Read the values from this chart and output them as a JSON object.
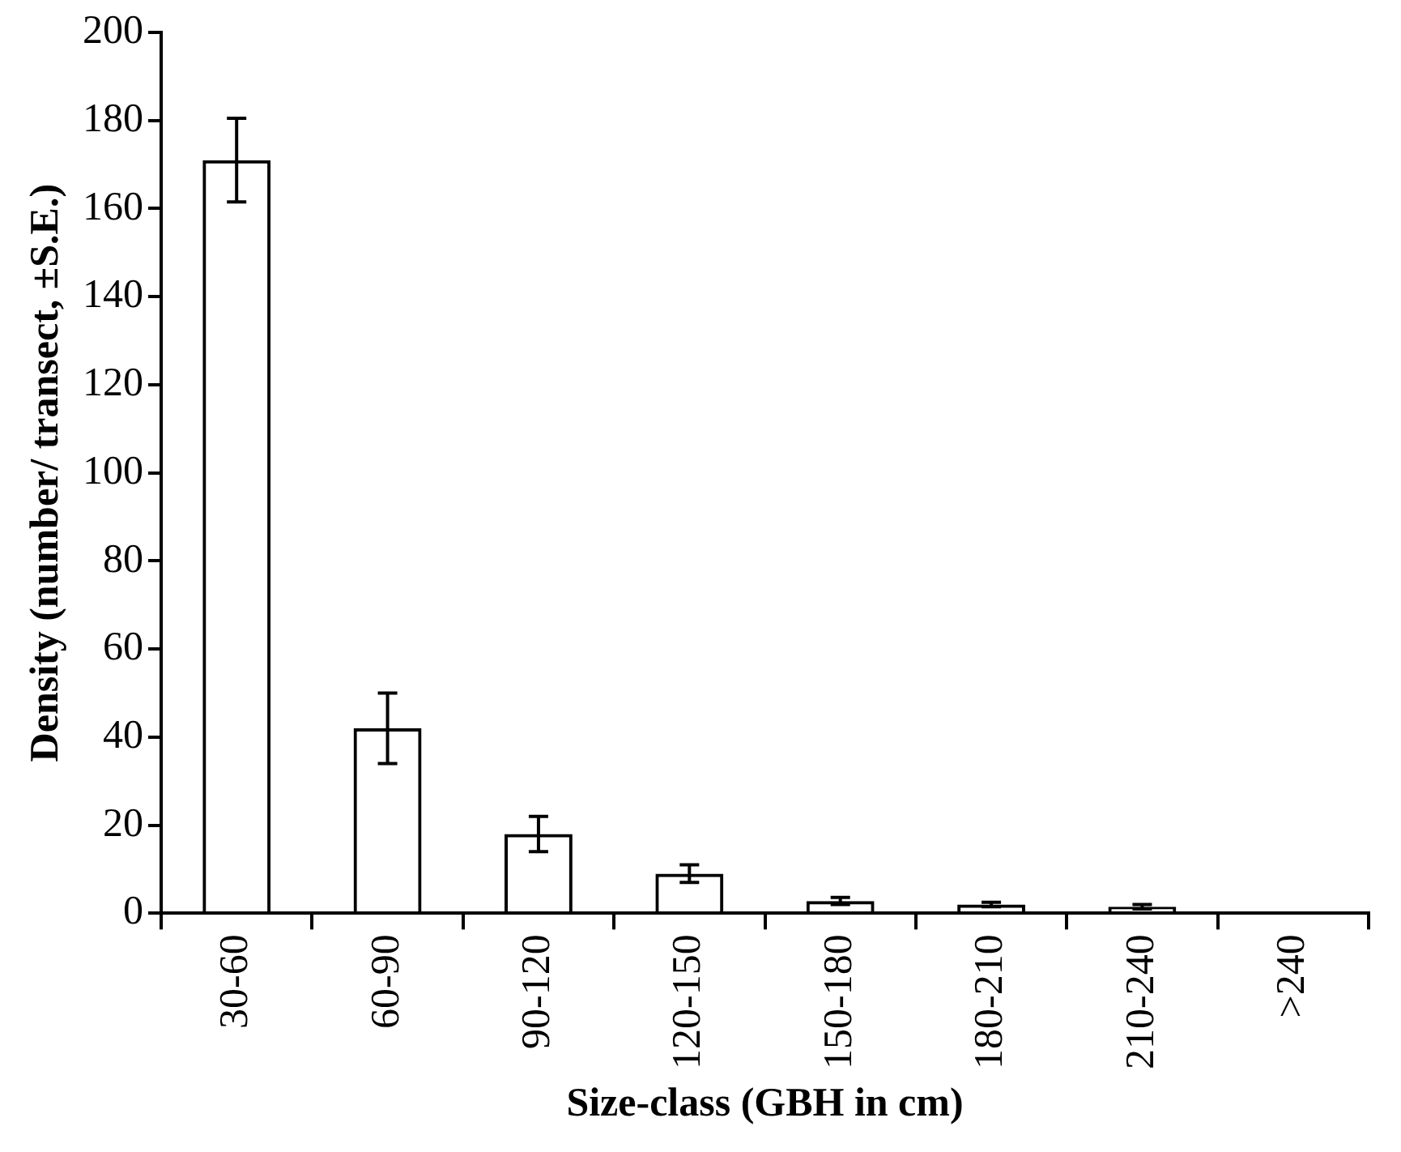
{
  "chart_data": {
    "type": "bar",
    "xlabel": "Size-class (GBH in cm)",
    "ylabel": "Density (number/ transect, ±S.E.)",
    "categories": [
      "30-60",
      "60-90",
      "90-120",
      "120-150",
      "150-180",
      "180-210",
      "210-240",
      ">240"
    ],
    "values": [
      171,
      42,
      18,
      9,
      2.8,
      2,
      1.5,
      0.3
    ],
    "errors": [
      9.5,
      8,
      4,
      2,
      0.8,
      0.5,
      0.5,
      null
    ],
    "color": "#000000",
    "ylim": [
      0,
      200
    ],
    "yticks": [
      0,
      20,
      40,
      60,
      80,
      100,
      120,
      140,
      160,
      180,
      200
    ],
    "grid": false,
    "legend": false
  }
}
